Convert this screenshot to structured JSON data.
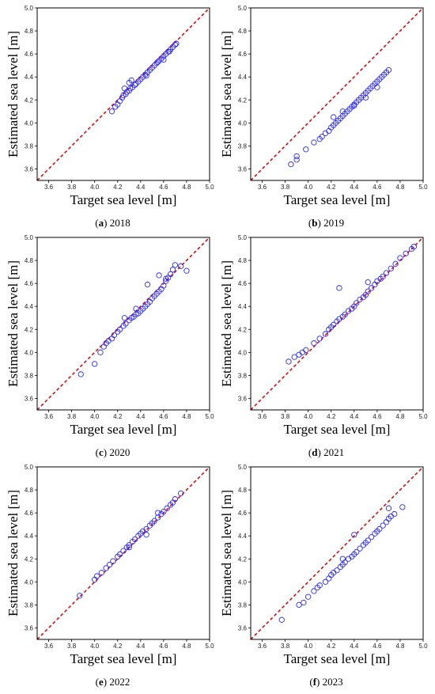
{
  "figure": {
    "panels": [
      {
        "caption_letter": "a",
        "caption_text": "2018"
      },
      {
        "caption_letter": "b",
        "caption_text": "2019"
      },
      {
        "caption_letter": "c",
        "caption_text": "2020"
      },
      {
        "caption_letter": "d",
        "caption_text": "2021"
      },
      {
        "caption_letter": "e",
        "caption_text": "2022"
      },
      {
        "caption_letter": "f",
        "caption_text": "2023"
      }
    ]
  },
  "colors": {
    "points": "#2b2bff",
    "reference_line": "#dd0000",
    "axes": "#000000"
  },
  "chart_data": [
    {
      "type": "scatter",
      "xlabel": "Target sea level [m]",
      "ylabel": "Estimated sea level [m]",
      "xlim": [
        3.5,
        5.0
      ],
      "ylim": [
        3.5,
        5.0
      ],
      "xticks": [
        "3.6",
        "3.8",
        "4.0",
        "4.2",
        "4.4",
        "4.6",
        "4.8",
        "5.0"
      ],
      "yticks": [
        "3.6",
        "3.8",
        "4.0",
        "4.2",
        "4.4",
        "4.6",
        "4.8",
        "5.0"
      ],
      "reference_line": "y = x",
      "grid": false,
      "points": {
        "x": [
          4.15,
          4.18,
          4.2,
          4.22,
          4.24,
          4.25,
          4.27,
          4.28,
          4.3,
          4.31,
          4.33,
          4.35,
          4.36,
          4.38,
          4.4,
          4.42,
          4.44,
          4.46,
          4.48,
          4.5,
          4.52,
          4.54,
          4.56,
          4.58,
          4.6,
          4.62,
          4.64,
          4.66,
          4.68,
          4.7,
          4.71,
          4.3,
          4.32,
          4.26,
          4.45,
          4.55,
          4.6,
          4.65
        ],
        "y": [
          4.1,
          4.14,
          4.16,
          4.19,
          4.22,
          4.24,
          4.25,
          4.27,
          4.28,
          4.3,
          4.31,
          4.33,
          4.34,
          4.36,
          4.38,
          4.4,
          4.42,
          4.44,
          4.46,
          4.48,
          4.5,
          4.52,
          4.54,
          4.56,
          4.58,
          4.6,
          4.62,
          4.64,
          4.66,
          4.68,
          4.69,
          4.35,
          4.37,
          4.3,
          4.41,
          4.53,
          4.55,
          4.62
        ]
      }
    },
    {
      "type": "scatter",
      "xlabel": "Target sea level [m]",
      "ylabel": "Estimated sea level [m]",
      "xlim": [
        3.5,
        5.0
      ],
      "ylim": [
        3.5,
        5.0
      ],
      "xticks": [
        "3.6",
        "3.8",
        "4.0",
        "4.2",
        "4.4",
        "4.6",
        "4.8",
        "5.0"
      ],
      "yticks": [
        "3.6",
        "3.8",
        "4.0",
        "4.2",
        "4.4",
        "4.6",
        "4.8",
        "5.0"
      ],
      "reference_line": "y = x",
      "grid": false,
      "points": {
        "x": [
          3.85,
          3.9,
          3.9,
          3.98,
          4.05,
          4.1,
          4.12,
          4.15,
          4.18,
          4.2,
          4.22,
          4.24,
          4.26,
          4.28,
          4.3,
          4.32,
          4.34,
          4.36,
          4.38,
          4.4,
          4.42,
          4.44,
          4.46,
          4.48,
          4.5,
          4.52,
          4.54,
          4.56,
          4.58,
          4.6,
          4.62,
          4.64,
          4.66,
          4.68,
          4.7,
          4.22,
          4.3,
          4.4,
          4.5,
          4.6
        ],
        "y": [
          3.64,
          3.68,
          3.71,
          3.77,
          3.83,
          3.86,
          3.88,
          3.91,
          3.93,
          3.96,
          3.98,
          4.0,
          4.02,
          4.04,
          4.06,
          4.08,
          4.1,
          4.12,
          4.14,
          4.16,
          4.18,
          4.2,
          4.22,
          4.24,
          4.26,
          4.28,
          4.3,
          4.32,
          4.34,
          4.36,
          4.38,
          4.4,
          4.42,
          4.44,
          4.46,
          4.05,
          4.1,
          4.15,
          4.22,
          4.31
        ]
      }
    },
    {
      "type": "scatter",
      "xlabel": "Target sea level [m]",
      "ylabel": "Estimated sea level [m]",
      "xlim": [
        3.5,
        5.0
      ],
      "ylim": [
        3.5,
        5.0
      ],
      "xticks": [
        "3.6",
        "3.8",
        "4.0",
        "4.2",
        "4.4",
        "4.6",
        "4.8",
        "5.0"
      ],
      "yticks": [
        "3.6",
        "3.8",
        "4.0",
        "4.2",
        "4.4",
        "4.6",
        "4.8",
        "5.0"
      ],
      "reference_line": "y = x",
      "grid": false,
      "points": {
        "x": [
          3.88,
          4.0,
          4.05,
          4.08,
          4.1,
          4.12,
          4.15,
          4.17,
          4.2,
          4.22,
          4.25,
          4.27,
          4.3,
          4.32,
          4.34,
          4.36,
          4.38,
          4.4,
          4.42,
          4.44,
          4.46,
          4.48,
          4.5,
          4.52,
          4.54,
          4.56,
          4.58,
          4.6,
          4.62,
          4.64,
          4.66,
          4.68,
          4.7,
          4.75,
          4.8,
          4.46,
          4.56,
          4.62,
          4.26,
          4.36
        ],
        "y": [
          3.81,
          3.9,
          4.0,
          4.05,
          4.08,
          4.1,
          4.12,
          4.15,
          4.18,
          4.2,
          4.23,
          4.25,
          4.28,
          4.3,
          4.31,
          4.33,
          4.34,
          4.36,
          4.38,
          4.4,
          4.42,
          4.44,
          4.47,
          4.49,
          4.51,
          4.53,
          4.55,
          4.58,
          4.62,
          4.65,
          4.68,
          4.72,
          4.76,
          4.75,
          4.71,
          4.59,
          4.67,
          4.64,
          4.3,
          4.38
        ]
      }
    },
    {
      "type": "scatter",
      "xlabel": "Target sea level [m]",
      "ylabel": "Estimated sea level [m]",
      "xlim": [
        3.5,
        5.0
      ],
      "ylim": [
        3.5,
        5.0
      ],
      "xticks": [
        "3.6",
        "3.8",
        "4.0",
        "4.2",
        "4.4",
        "4.6",
        "4.8",
        "5.0"
      ],
      "yticks": [
        "3.6",
        "3.8",
        "4.0",
        "4.2",
        "4.4",
        "4.6",
        "4.8",
        "5.0"
      ],
      "reference_line": "y = x",
      "grid": false,
      "points": {
        "x": [
          3.83,
          3.88,
          3.92,
          3.95,
          3.98,
          4.05,
          4.1,
          4.15,
          4.18,
          4.2,
          4.22,
          4.25,
          4.27,
          4.3,
          4.32,
          4.35,
          4.38,
          4.4,
          4.42,
          4.45,
          4.48,
          4.5,
          4.52,
          4.55,
          4.58,
          4.6,
          4.63,
          4.65,
          4.68,
          4.72,
          4.76,
          4.8,
          4.85,
          4.9,
          4.92,
          4.27,
          4.52
        ],
        "y": [
          3.92,
          3.96,
          3.98,
          4.0,
          4.02,
          4.08,
          4.12,
          4.16,
          4.2,
          4.22,
          4.24,
          4.27,
          4.29,
          4.31,
          4.33,
          4.36,
          4.38,
          4.4,
          4.43,
          4.46,
          4.48,
          4.5,
          4.53,
          4.56,
          4.59,
          4.62,
          4.64,
          4.66,
          4.69,
          4.73,
          4.77,
          4.82,
          4.86,
          4.9,
          4.92,
          4.56,
          4.61
        ]
      }
    },
    {
      "type": "scatter",
      "xlabel": "Target sea level [m]",
      "ylabel": "Estimated sea level [m]",
      "xlim": [
        3.5,
        5.0
      ],
      "ylim": [
        3.5,
        5.0
      ],
      "xticks": [
        "3.6",
        "3.8",
        "4.0",
        "4.2",
        "4.4",
        "4.6",
        "4.8",
        "5.0"
      ],
      "yticks": [
        "3.6",
        "3.8",
        "4.0",
        "4.2",
        "4.4",
        "4.6",
        "4.8",
        "5.0"
      ],
      "reference_line": "y = x",
      "grid": false,
      "points": {
        "x": [
          3.87,
          4.0,
          4.02,
          4.06,
          4.1,
          4.13,
          4.16,
          4.2,
          4.22,
          4.25,
          4.28,
          4.3,
          4.33,
          4.35,
          4.38,
          4.4,
          4.42,
          4.45,
          4.48,
          4.5,
          4.52,
          4.55,
          4.58,
          4.6,
          4.63,
          4.66,
          4.68,
          4.7,
          4.75,
          4.45,
          4.55,
          4.3
        ],
        "y": [
          3.88,
          4.02,
          4.05,
          4.08,
          4.12,
          4.15,
          4.18,
          4.22,
          4.24,
          4.27,
          4.3,
          4.32,
          4.35,
          4.37,
          4.4,
          4.42,
          4.44,
          4.46,
          4.49,
          4.51,
          4.53,
          4.56,
          4.59,
          4.61,
          4.64,
          4.67,
          4.69,
          4.72,
          4.77,
          4.41,
          4.6,
          4.3
        ]
      }
    },
    {
      "type": "scatter",
      "xlabel": "Target sea level [m]",
      "ylabel": "Estimated sea level [m]",
      "xlim": [
        3.5,
        5.0
      ],
      "ylim": [
        3.5,
        5.0
      ],
      "xticks": [
        "3.6",
        "3.8",
        "4.0",
        "4.2",
        "4.4",
        "4.6",
        "4.8",
        "5.0"
      ],
      "yticks": [
        "3.6",
        "3.8",
        "4.0",
        "4.2",
        "4.4",
        "4.6",
        "4.8",
        "5.0"
      ],
      "reference_line": "y = x",
      "grid": false,
      "points": {
        "x": [
          3.77,
          3.92,
          3.96,
          4.0,
          4.05,
          4.08,
          4.1,
          4.15,
          4.18,
          4.2,
          4.22,
          4.25,
          4.28,
          4.3,
          4.32,
          4.35,
          4.38,
          4.4,
          4.42,
          4.45,
          4.48,
          4.5,
          4.52,
          4.55,
          4.58,
          4.6,
          4.62,
          4.65,
          4.68,
          4.7,
          4.72,
          4.75,
          4.82,
          4.7,
          4.4,
          4.3
        ],
        "y": [
          3.67,
          3.8,
          3.82,
          3.87,
          3.92,
          3.95,
          3.97,
          4.0,
          4.03,
          4.06,
          4.08,
          4.1,
          4.13,
          4.15,
          4.17,
          4.2,
          4.22,
          4.24,
          4.26,
          4.29,
          4.32,
          4.34,
          4.36,
          4.39,
          4.42,
          4.44,
          4.46,
          4.49,
          4.52,
          4.55,
          4.57,
          4.59,
          4.65,
          4.64,
          4.41,
          4.2
        ]
      }
    }
  ]
}
